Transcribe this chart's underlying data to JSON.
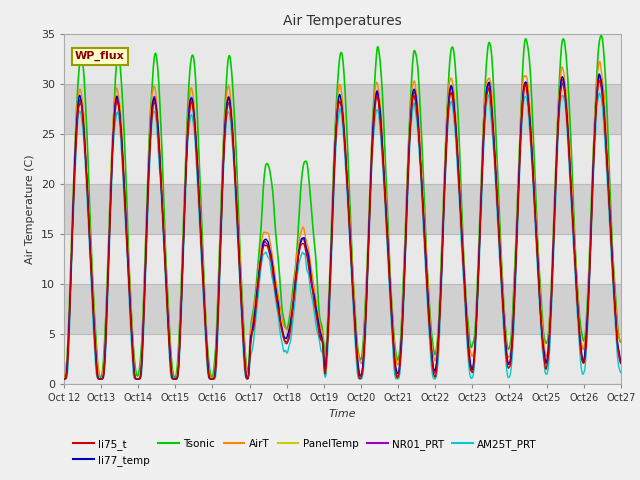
{
  "title": "Air Temperatures",
  "xlabel": "Time",
  "ylabel": "Air Temperature (C)",
  "ylim": [
    0,
    35
  ],
  "xlim": [
    0,
    360
  ],
  "background_color": "#f0f0f0",
  "plot_bg_color": "#d8d8d8",
  "grid_color": "#bbbbbb",
  "series": {
    "li75_t": {
      "color": "#cc0000",
      "lw": 1.0
    },
    "li77_temp": {
      "color": "#0000bb",
      "lw": 1.0
    },
    "Tsonic": {
      "color": "#00cc00",
      "lw": 1.2
    },
    "AirT": {
      "color": "#ff8800",
      "lw": 1.0
    },
    "PanelTemp": {
      "color": "#cccc00",
      "lw": 1.0
    },
    "NR01_PRT": {
      "color": "#9900cc",
      "lw": 1.0
    },
    "AM25T_PRT": {
      "color": "#00cccc",
      "lw": 1.0
    }
  },
  "tick_labels": [
    "Oct 12",
    "Oct 13",
    "Oct 14",
    "Oct 15",
    "Oct 16",
    "Oct 17",
    "Oct 18",
    "Oct 19",
    "Oct 20",
    "Oct 21",
    "Oct 22",
    "Oct 23",
    "Oct 24",
    "Oct 25",
    "Oct 26",
    "Oct 27"
  ],
  "yticks": [
    0,
    5,
    10,
    15,
    20,
    25,
    30,
    35
  ],
  "annotation_text": "WP_flux",
  "band_colors": [
    "#e8e8e8",
    "#d0d0d0"
  ]
}
